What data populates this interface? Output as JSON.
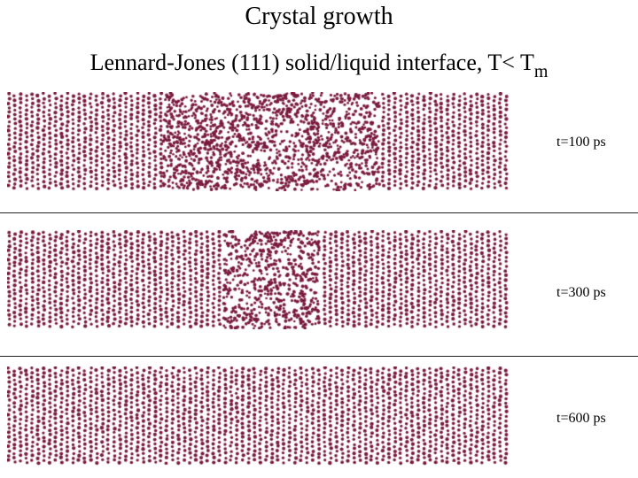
{
  "title": "Crystal growth",
  "subtitle": {
    "main": "Lennard-Jones (111) solid/liquid interface, T< T",
    "subscript": "m"
  },
  "colors": {
    "atom": "#7a1a3e",
    "background": "#ffffff",
    "rule": "#222222"
  },
  "panels": [
    {
      "label": "t=100 ps",
      "liquid_region_fraction": [
        0.31,
        0.74
      ]
    },
    {
      "label": "t=300 ps",
      "liquid_region_fraction": [
        0.43,
        0.62
      ]
    },
    {
      "label": "t=600 ps",
      "liquid_region_fraction": [
        0.0,
        0.0
      ]
    }
  ]
}
